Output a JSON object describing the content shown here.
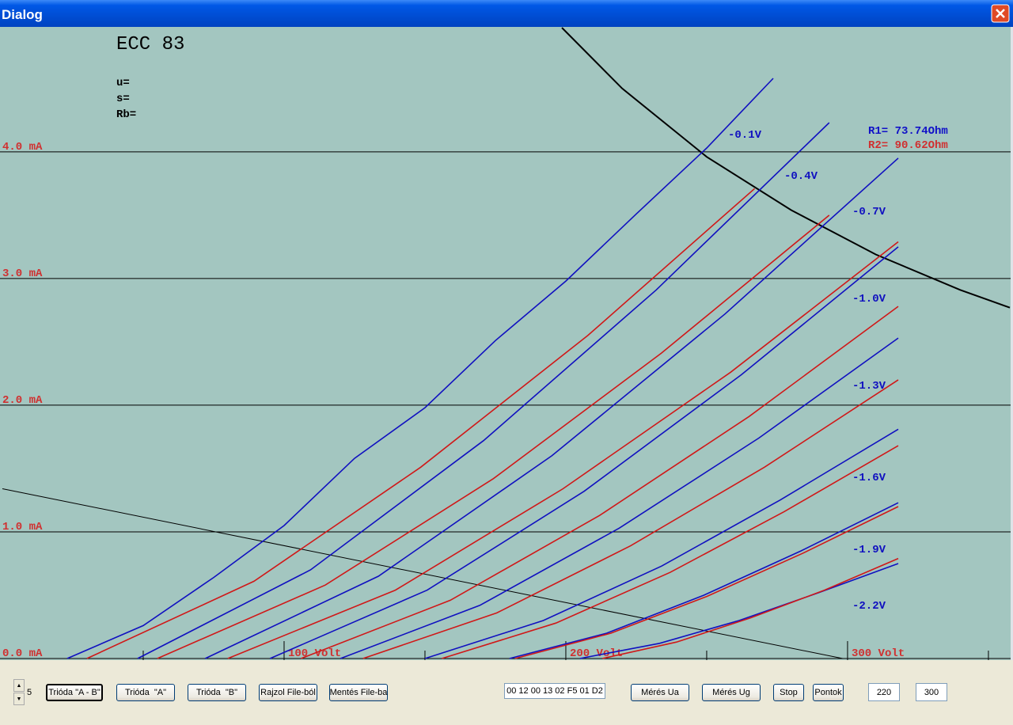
{
  "window": {
    "title": "Dialog"
  },
  "chart_data": {
    "type": "line",
    "title": "ECC 83",
    "annotations": [
      "u=",
      "s=",
      "Rb="
    ],
    "r_labels": [
      {
        "text": "R1= 73.74Ohm",
        "color": "#1010c8"
      },
      {
        "text": "R2= 90.62Ohm",
        "color": "#d03030"
      }
    ],
    "xlim": [
      -0.84,
      357.6
    ],
    "ylim": [
      0,
      4.98
    ],
    "xticks": [
      {
        "value": 100,
        "label": "100 Volt"
      },
      {
        "value": 200,
        "label": "200 Volt"
      },
      {
        "value": 300,
        "label": "300 Volt"
      }
    ],
    "minor_xticks": [
      50,
      150,
      250,
      350
    ],
    "yticks": [
      {
        "value": 0,
        "label": "0.0 mA"
      },
      {
        "value": 1,
        "label": "1.0 mA"
      },
      {
        "value": 2,
        "label": "2.0 mA"
      },
      {
        "value": 3,
        "label": "3.0 mA"
      },
      {
        "value": 4,
        "label": "4.0 mA"
      }
    ],
    "grid": true,
    "series": [
      {
        "name": "-0.1V",
        "color": "#1010c0",
        "x": [
          23,
          50,
          75,
          100,
          125,
          150,
          175,
          200,
          225,
          250,
          273.6
        ],
        "values": [
          0,
          0.26,
          0.64,
          1.05,
          1.58,
          1.98,
          2.51,
          2.98,
          3.51,
          4.03,
          4.58
        ]
      },
      {
        "name": "-0.4V",
        "color": "#1010c0",
        "x": [
          48,
          109.4,
          170.8,
          232.1,
          293.5
        ],
        "values": [
          0,
          0.7,
          1.72,
          2.91,
          4.23
        ]
      },
      {
        "name": "-0.7V",
        "color": "#1010c0",
        "x": [
          72,
          133.5,
          195,
          256.5,
          318
        ],
        "values": [
          0,
          0.65,
          1.6,
          2.72,
          3.95
        ]
      },
      {
        "name": "-1.0V",
        "color": "#1010c0",
        "x": [
          95,
          150.8,
          206.5,
          262.3,
          318
        ],
        "values": [
          0,
          0.54,
          1.32,
          2.24,
          3.25
        ]
      },
      {
        "name": "-1.3V",
        "color": "#1010c0",
        "x": [
          120,
          169.5,
          219,
          268.5,
          318
        ],
        "values": [
          0,
          0.42,
          1.03,
          1.74,
          2.53
        ]
      },
      {
        "name": "-1.6V",
        "color": "#1010c0",
        "x": [
          150,
          192,
          234,
          276,
          318
        ],
        "values": [
          0,
          0.3,
          0.73,
          1.25,
          1.81
        ]
      },
      {
        "name": "-1.9V",
        "color": "#1010c0",
        "x": [
          180,
          214.5,
          249,
          283.5,
          318
        ],
        "values": [
          0,
          0.2,
          0.5,
          0.85,
          1.23
        ]
      },
      {
        "name": "-2.2V",
        "color": "#1010c0",
        "x": [
          205,
          233.3,
          261.5,
          289.8,
          318
        ],
        "values": [
          0,
          0.12,
          0.3,
          0.52,
          0.75
        ]
      },
      {
        "color": "#d01818",
        "x": [
          30,
          89.3,
          148.5,
          207.8,
          267
        ],
        "values": [
          0,
          0.61,
          1.51,
          2.55,
          3.71
        ]
      },
      {
        "color": "#d01818",
        "x": [
          55,
          114.6,
          174.3,
          233.9,
          293.5
        ],
        "values": [
          0,
          0.58,
          1.42,
          2.41,
          3.5
        ]
      },
      {
        "color": "#d01818",
        "x": [
          80,
          139.5,
          199,
          258.5,
          318
        ],
        "values": [
          0,
          0.54,
          1.34,
          2.26,
          3.29
        ]
      },
      {
        "color": "#d01818",
        "x": [
          106,
          159,
          212,
          265,
          318
        ],
        "values": [
          0,
          0.46,
          1.13,
          1.91,
          2.78
        ]
      },
      {
        "color": "#d01818",
        "x": [
          128,
          175.5,
          223,
          270.5,
          318
        ],
        "values": [
          0,
          0.36,
          0.89,
          1.51,
          2.2
        ]
      },
      {
        "color": "#d01818",
        "x": [
          156,
          196.5,
          237,
          277.5,
          318
        ],
        "values": [
          0,
          0.28,
          0.68,
          1.16,
          1.68
        ]
      },
      {
        "color": "#d01818",
        "x": [
          182,
          216,
          250,
          284,
          318
        ],
        "values": [
          0,
          0.2,
          0.49,
          0.83,
          1.2
        ]
      },
      {
        "color": "#d01818",
        "x": [
          213,
          239.3,
          265.5,
          291.8,
          318
        ],
        "values": [
          0,
          0.13,
          0.32,
          0.54,
          0.79
        ]
      }
    ],
    "reference_lines": [
      {
        "color": "#000000",
        "width": 2,
        "x": [
          198.6,
          220,
          250,
          280,
          310,
          340,
          357.6
        ],
        "values": [
          4.98,
          4.5,
          3.96,
          3.54,
          3.19,
          2.91,
          2.77
        ]
      },
      {
        "color": "#000000",
        "width": 1,
        "x": [
          0,
          298.3
        ],
        "values": [
          1.34,
          0
        ]
      }
    ]
  },
  "controls": {
    "spinner": "5",
    "buttons": [
      "Trióda \"A - B\"",
      "Trióda  \"A\"",
      "Trióda  \"B\"",
      "Rajzol File-ból",
      "Mentés File-ba"
    ],
    "hex": "00 12 00 13 02 F5 01 D2",
    "buttons2": [
      "Mérés Ua",
      "Mérés Ug",
      "Stop",
      "Pontok"
    ],
    "inputs": [
      "220",
      "300"
    ]
  }
}
